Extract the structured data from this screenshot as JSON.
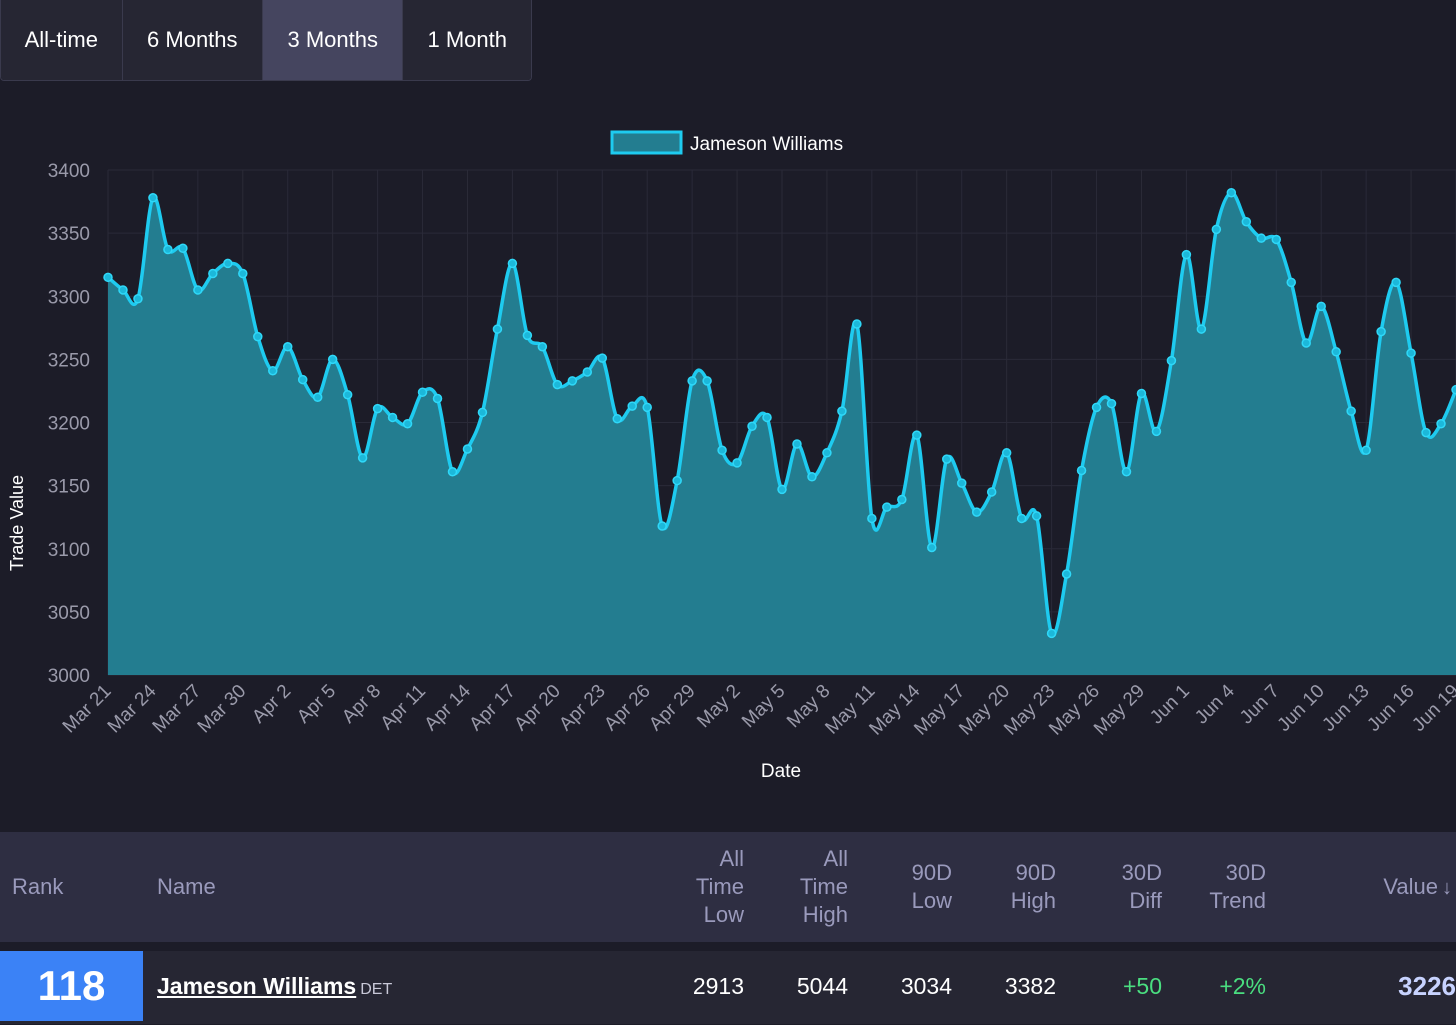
{
  "tabs": [
    {
      "label": "All-time",
      "active": false
    },
    {
      "label": "6 Months",
      "active": false
    },
    {
      "label": "3 Months",
      "active": true
    },
    {
      "label": "1 Month",
      "active": false
    }
  ],
  "chart_data": {
    "type": "area",
    "legend": "Jameson Williams",
    "xlabel": "Date",
    "ylabel": "Trade Value",
    "ylim": [
      3000,
      3400
    ],
    "yticks": [
      3000,
      3050,
      3100,
      3150,
      3200,
      3250,
      3300,
      3350,
      3400
    ],
    "x_ticks": [
      "Mar 21",
      "Mar 24",
      "Mar 27",
      "Mar 30",
      "Apr 2",
      "Apr 5",
      "Apr 8",
      "Apr 11",
      "Apr 14",
      "Apr 17",
      "Apr 20",
      "Apr 23",
      "Apr 26",
      "Apr 29",
      "May 2",
      "May 5",
      "May 8",
      "May 11",
      "May 14",
      "May 17",
      "May 20",
      "May 23",
      "May 26",
      "May 29",
      "Jun 1",
      "Jun 4",
      "Jun 7",
      "Jun 10",
      "Jun 13",
      "Jun 16",
      "Jun 19"
    ],
    "grid": true,
    "legend_position": "top",
    "colors": {
      "line": "#1ecbf0",
      "fill": "#237d90"
    },
    "values": [
      3315,
      3305,
      3298,
      3378,
      3337,
      3338,
      3305,
      3318,
      3326,
      3318,
      3268,
      3241,
      3260,
      3234,
      3220,
      3250,
      3222,
      3172,
      3211,
      3204,
      3199,
      3224,
      3219,
      3161,
      3179,
      3208,
      3274,
      3326,
      3269,
      3260,
      3230,
      3233,
      3240,
      3251,
      3203,
      3213,
      3212,
      3118,
      3154,
      3233,
      3233,
      3178,
      3168,
      3197,
      3204,
      3147,
      3183,
      3157,
      3176,
      3209,
      3278,
      3124,
      3133,
      3139,
      3190,
      3101,
      3171,
      3152,
      3129,
      3145,
      3176,
      3124,
      3126,
      3033,
      3080,
      3162,
      3212,
      3215,
      3161,
      3223,
      3193,
      3249,
      3333,
      3274,
      3353,
      3382,
      3359,
      3346,
      3345,
      3311,
      3263,
      3292,
      3256,
      3209,
      3178,
      3272,
      3311,
      3255,
      3192,
      3199,
      3226
    ]
  },
  "table": {
    "headers": {
      "rank": "Rank",
      "name": "Name",
      "all_time_low": [
        "All",
        "Time",
        "Low"
      ],
      "all_time_high": [
        "All",
        "Time",
        "High"
      ],
      "low_90d": [
        "90D",
        "Low"
      ],
      "high_90d": [
        "90D",
        "High"
      ],
      "diff_30d": [
        "30D",
        "Diff"
      ],
      "trend_30d": [
        "30D",
        "Trend"
      ],
      "value": "Value",
      "sort_icon": "↓"
    },
    "row": {
      "rank": "118",
      "name": "Jameson Williams",
      "team": "DET",
      "all_time_low": "2913",
      "all_time_high": "5044",
      "low_90d": "3034",
      "high_90d": "3382",
      "diff_30d": "+50",
      "trend_30d": "+2%",
      "value": "3226"
    }
  }
}
